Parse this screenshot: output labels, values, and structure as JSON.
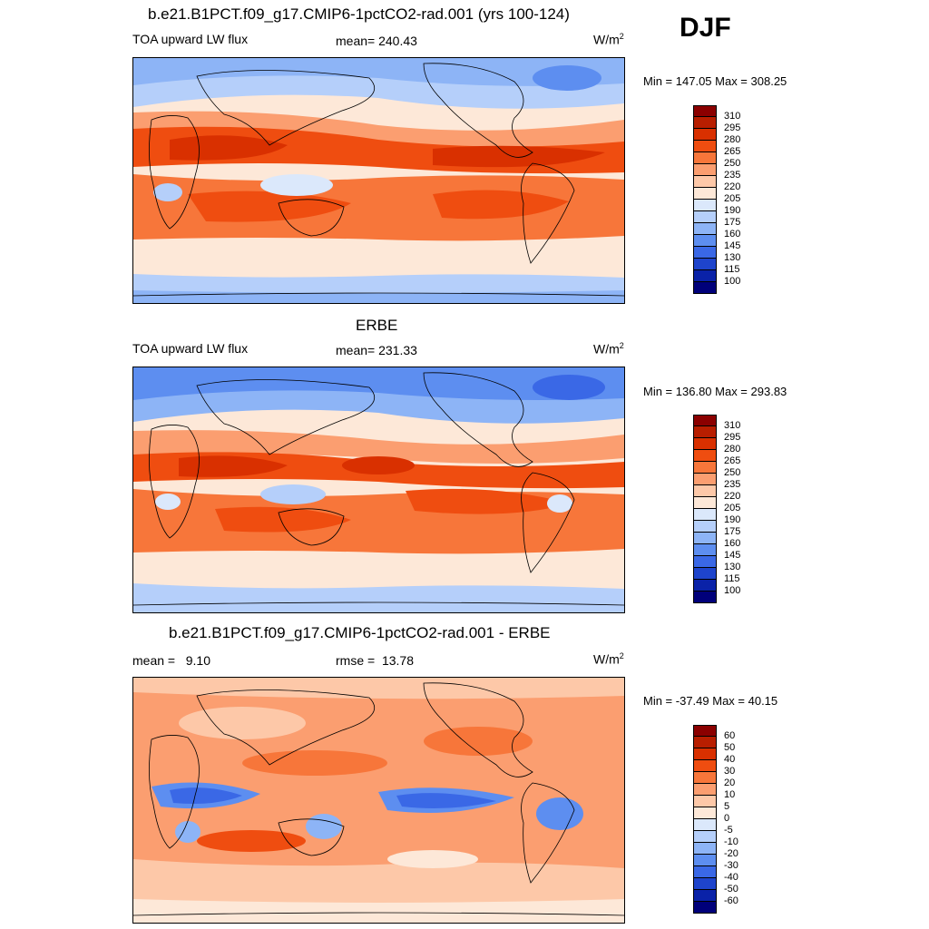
{
  "season": "DJF",
  "panels": [
    {
      "title": "b.e21.B1PCT.f09_g17.CMIP6-1pctCO2-rad.001 (yrs 100-124)",
      "left": "TOA upward LW flux",
      "center": "mean= 240.43",
      "unit": "W/m",
      "unit_sup": "2",
      "minmax": "Min = 147.05 Max = 308.25"
    },
    {
      "title": "ERBE",
      "left": "TOA upward LW flux",
      "center": "mean= 231.33",
      "unit": "W/m",
      "unit_sup": "2",
      "minmax": "Min = 136.80 Max = 293.83"
    },
    {
      "title": "b.e21.B1PCT.f09_g17.CMIP6-1pctCO2-rad.001 - ERBE",
      "left": "mean =   9.10",
      "center": "rmse =  13.78",
      "unit": "W/m",
      "unit_sup": "2",
      "minmax": "Min = -37.49 Max =  40.15"
    }
  ],
  "colorbars": [
    {
      "labels": [
        "310",
        "295",
        "280",
        "265",
        "250",
        "235",
        "220",
        "205",
        "190",
        "175",
        "160",
        "145",
        "130",
        "115",
        "100"
      ]
    },
    {
      "labels": [
        "310",
        "295",
        "280",
        "265",
        "250",
        "235",
        "220",
        "205",
        "190",
        "175",
        "160",
        "145",
        "130",
        "115",
        "100"
      ]
    },
    {
      "labels": [
        "60",
        "50",
        "40",
        "30",
        "20",
        "10",
        "5",
        "0",
        "-5",
        "-10",
        "-20",
        "-30",
        "-40",
        "-50",
        "-60"
      ]
    }
  ],
  "palette": [
    "#8b0000",
    "#b81e00",
    "#d93000",
    "#ef4d10",
    "#f7763a",
    "#fb9e70",
    "#fdc8a8",
    "#fde8d8",
    "#dbe8fb",
    "#b5cffa",
    "#8db4f6",
    "#5d8ef0",
    "#3a68e6",
    "#1e44cc",
    "#0a22a8",
    "#00007a"
  ],
  "chart_data": {
    "type": "heatmap",
    "title": "DJF",
    "subplots": [
      {
        "title": "b.e21.B1PCT.f09_g17.CMIP6-1pctCO2-rad.001 (yrs 100-124)",
        "variable": "TOA upward LW flux",
        "units": "W/m2",
        "mean": 240.43,
        "min": 147.05,
        "max": 308.25,
        "levels": [
          100,
          115,
          130,
          145,
          160,
          175,
          190,
          205,
          220,
          235,
          250,
          265,
          280,
          295,
          310
        ]
      },
      {
        "title": "ERBE",
        "variable": "TOA upward LW flux",
        "units": "W/m2",
        "mean": 231.33,
        "min": 136.8,
        "max": 293.83,
        "levels": [
          100,
          115,
          130,
          145,
          160,
          175,
          190,
          205,
          220,
          235,
          250,
          265,
          280,
          295,
          310
        ]
      },
      {
        "title": "b.e21.B1PCT.f09_g17.CMIP6-1pctCO2-rad.001 - ERBE",
        "units": "W/m2",
        "mean": 9.1,
        "rmse": 13.78,
        "min": -37.49,
        "max": 40.15,
        "levels": [
          -60,
          -50,
          -40,
          -30,
          -20,
          -10,
          -5,
          0,
          5,
          10,
          20,
          30,
          40,
          50,
          60
        ]
      }
    ]
  }
}
